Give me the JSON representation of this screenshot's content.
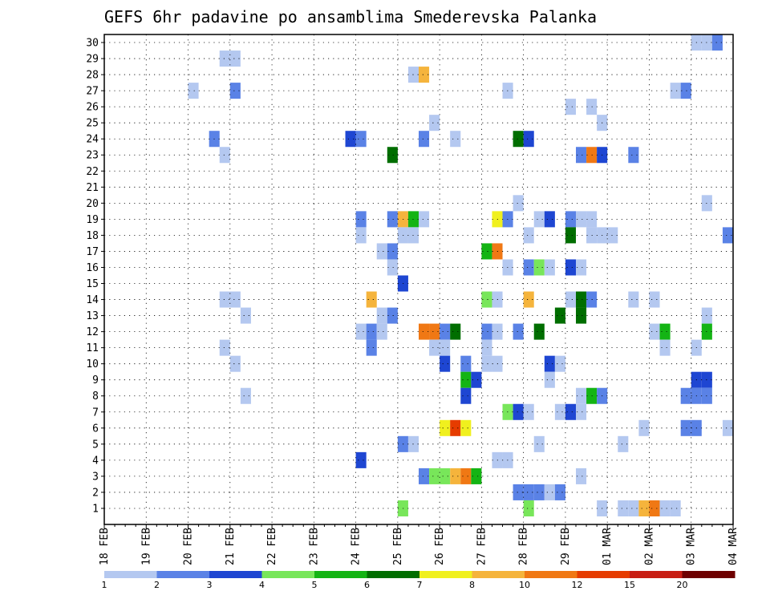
{
  "chart_data": {
    "type": "heatmap",
    "title": "GEFS 6hr padavine po ansamblima Smederevska Palanka",
    "xlabel": "",
    "ylabel": "",
    "x_tick_labels": [
      "18 FEB",
      "19 FEB",
      "20 FEB",
      "21 FEB",
      "22 FEB",
      "23 FEB",
      "24 FEB",
      "25 FEB",
      "26 FEB",
      "27 FEB",
      "28 FEB",
      "29 FEB",
      "01 MAR",
      "02 MAR",
      "03 MAR",
      "04 MAR"
    ],
    "y_tick_labels": [
      "1",
      "2",
      "3",
      "4",
      "5",
      "6",
      "7",
      "8",
      "9",
      "10",
      "11",
      "12",
      "13",
      "14",
      "15",
      "16",
      "17",
      "18",
      "19",
      "20",
      "21",
      "22",
      "23",
      "24",
      "25",
      "26",
      "27",
      "28",
      "29",
      "30"
    ],
    "xlim_steps": [
      0,
      60
    ],
    "ylim": [
      0,
      30
    ],
    "grid": true,
    "colorbar": {
      "labels": [
        "1",
        "2",
        "3",
        "4",
        "5",
        "6",
        "7",
        "8",
        "10",
        "12",
        "15",
        "20"
      ],
      "colors": [
        "#b4c8f0",
        "#5a82e6",
        "#1e46d2",
        "#78e65a",
        "#14b414",
        "#006e00",
        "#f0f01e",
        "#f5b43c",
        "#f07814",
        "#e63c00",
        "#c81e14",
        "#6e0000"
      ]
    },
    "cells": [
      {
        "m": 30,
        "t": 56,
        "c": 0
      },
      {
        "m": 30,
        "t": 57,
        "c": 0
      },
      {
        "m": 30,
        "t": 58,
        "c": 1
      },
      {
        "m": 29,
        "t": 11,
        "c": 0
      },
      {
        "m": 29,
        "t": 12,
        "c": 0
      },
      {
        "m": 28,
        "t": 29,
        "c": 0
      },
      {
        "m": 28,
        "t": 30,
        "c": 7
      },
      {
        "m": 27,
        "t": 8,
        "c": 0
      },
      {
        "m": 27,
        "t": 12,
        "c": 1
      },
      {
        "m": 27,
        "t": 38,
        "c": 0
      },
      {
        "m": 27,
        "t": 54,
        "c": 0
      },
      {
        "m": 27,
        "t": 55,
        "c": 1
      },
      {
        "m": 26,
        "t": 44,
        "c": 0
      },
      {
        "m": 26,
        "t": 46,
        "c": 0
      },
      {
        "m": 25,
        "t": 31,
        "c": 0
      },
      {
        "m": 25,
        "t": 47,
        "c": 0
      },
      {
        "m": 24,
        "t": 10,
        "c": 1
      },
      {
        "m": 24,
        "t": 23,
        "c": 2
      },
      {
        "m": 24,
        "t": 24,
        "c": 1
      },
      {
        "m": 24,
        "t": 30,
        "c": 1
      },
      {
        "m": 24,
        "t": 33,
        "c": 0
      },
      {
        "m": 24,
        "t": 39,
        "c": 5
      },
      {
        "m": 24,
        "t": 40,
        "c": 2
      },
      {
        "m": 23,
        "t": 11,
        "c": 0
      },
      {
        "m": 23,
        "t": 27,
        "c": 5
      },
      {
        "m": 23,
        "t": 45,
        "c": 1
      },
      {
        "m": 23,
        "t": 46,
        "c": 8
      },
      {
        "m": 23,
        "t": 47,
        "c": 2
      },
      {
        "m": 23,
        "t": 50,
        "c": 1
      },
      {
        "m": 20,
        "t": 39,
        "c": 0
      },
      {
        "m": 20,
        "t": 57,
        "c": 0
      },
      {
        "m": 19,
        "t": 24,
        "c": 1
      },
      {
        "m": 19,
        "t": 27,
        "c": 1
      },
      {
        "m": 19,
        "t": 28,
        "c": 7
      },
      {
        "m": 19,
        "t": 29,
        "c": 4
      },
      {
        "m": 19,
        "t": 30,
        "c": 0
      },
      {
        "m": 19,
        "t": 37,
        "c": 6
      },
      {
        "m": 19,
        "t": 38,
        "c": 1
      },
      {
        "m": 19,
        "t": 41,
        "c": 0
      },
      {
        "m": 19,
        "t": 42,
        "c": 2
      },
      {
        "m": 19,
        "t": 44,
        "c": 1
      },
      {
        "m": 19,
        "t": 45,
        "c": 0
      },
      {
        "m": 19,
        "t": 46,
        "c": 0
      },
      {
        "m": 18,
        "t": 24,
        "c": 0
      },
      {
        "m": 18,
        "t": 28,
        "c": 0
      },
      {
        "m": 18,
        "t": 29,
        "c": 0
      },
      {
        "m": 18,
        "t": 40,
        "c": 0
      },
      {
        "m": 18,
        "t": 44,
        "c": 5
      },
      {
        "m": 18,
        "t": 46,
        "c": 0
      },
      {
        "m": 18,
        "t": 47,
        "c": 0
      },
      {
        "m": 18,
        "t": 48,
        "c": 0
      },
      {
        "m": 18,
        "t": 59,
        "c": 1
      },
      {
        "m": 17,
        "t": 26,
        "c": 0
      },
      {
        "m": 17,
        "t": 27,
        "c": 1
      },
      {
        "m": 17,
        "t": 36,
        "c": 4
      },
      {
        "m": 17,
        "t": 37,
        "c": 8
      },
      {
        "m": 16,
        "t": 27,
        "c": 0
      },
      {
        "m": 16,
        "t": 38,
        "c": 0
      },
      {
        "m": 16,
        "t": 40,
        "c": 1
      },
      {
        "m": 16,
        "t": 41,
        "c": 3
      },
      {
        "m": 16,
        "t": 42,
        "c": 0
      },
      {
        "m": 16,
        "t": 44,
        "c": 2
      },
      {
        "m": 16,
        "t": 45,
        "c": 0
      },
      {
        "m": 15,
        "t": 28,
        "c": 2
      },
      {
        "m": 14,
        "t": 11,
        "c": 0
      },
      {
        "m": 14,
        "t": 12,
        "c": 0
      },
      {
        "m": 14,
        "t": 25,
        "c": 7
      },
      {
        "m": 14,
        "t": 36,
        "c": 3
      },
      {
        "m": 14,
        "t": 37,
        "c": 0
      },
      {
        "m": 14,
        "t": 40,
        "c": 7
      },
      {
        "m": 14,
        "t": 44,
        "c": 0
      },
      {
        "m": 14,
        "t": 45,
        "c": 5
      },
      {
        "m": 14,
        "t": 46,
        "c": 1
      },
      {
        "m": 14,
        "t": 50,
        "c": 0
      },
      {
        "m": 14,
        "t": 52,
        "c": 0
      },
      {
        "m": 13,
        "t": 13,
        "c": 0
      },
      {
        "m": 13,
        "t": 26,
        "c": 0
      },
      {
        "m": 13,
        "t": 27,
        "c": 1
      },
      {
        "m": 13,
        "t": 43,
        "c": 5
      },
      {
        "m": 13,
        "t": 45,
        "c": 5
      },
      {
        "m": 13,
        "t": 57,
        "c": 0
      },
      {
        "m": 12,
        "t": 24,
        "c": 0
      },
      {
        "m": 12,
        "t": 25,
        "c": 1
      },
      {
        "m": 12,
        "t": 26,
        "c": 0
      },
      {
        "m": 12,
        "t": 30,
        "c": 8
      },
      {
        "m": 12,
        "t": 31,
        "c": 8
      },
      {
        "m": 12,
        "t": 32,
        "c": 1
      },
      {
        "m": 12,
        "t": 33,
        "c": 5
      },
      {
        "m": 12,
        "t": 36,
        "c": 1
      },
      {
        "m": 12,
        "t": 37,
        "c": 0
      },
      {
        "m": 12,
        "t": 39,
        "c": 1
      },
      {
        "m": 12,
        "t": 41,
        "c": 5
      },
      {
        "m": 12,
        "t": 52,
        "c": 0
      },
      {
        "m": 12,
        "t": 53,
        "c": 4
      },
      {
        "m": 12,
        "t": 57,
        "c": 4
      },
      {
        "m": 11,
        "t": 11,
        "c": 0
      },
      {
        "m": 11,
        "t": 25,
        "c": 1
      },
      {
        "m": 11,
        "t": 31,
        "c": 0
      },
      {
        "m": 11,
        "t": 32,
        "c": 0
      },
      {
        "m": 11,
        "t": 36,
        "c": 0
      },
      {
        "m": 11,
        "t": 53,
        "c": 0
      },
      {
        "m": 11,
        "t": 56,
        "c": 0
      },
      {
        "m": 10,
        "t": 12,
        "c": 0
      },
      {
        "m": 10,
        "t": 32,
        "c": 2
      },
      {
        "m": 10,
        "t": 34,
        "c": 1
      },
      {
        "m": 10,
        "t": 36,
        "c": 0
      },
      {
        "m": 10,
        "t": 37,
        "c": 0
      },
      {
        "m": 10,
        "t": 42,
        "c": 2
      },
      {
        "m": 10,
        "t": 43,
        "c": 0
      },
      {
        "m": 9,
        "t": 34,
        "c": 4
      },
      {
        "m": 9,
        "t": 35,
        "c": 2
      },
      {
        "m": 9,
        "t": 42,
        "c": 0
      },
      {
        "m": 9,
        "t": 56,
        "c": 2
      },
      {
        "m": 9,
        "t": 57,
        "c": 2
      },
      {
        "m": 8,
        "t": 13,
        "c": 0
      },
      {
        "m": 8,
        "t": 34,
        "c": 2
      },
      {
        "m": 8,
        "t": 45,
        "c": 0
      },
      {
        "m": 8,
        "t": 46,
        "c": 4
      },
      {
        "m": 8,
        "t": 47,
        "c": 1
      },
      {
        "m": 8,
        "t": 55,
        "c": 1
      },
      {
        "m": 8,
        "t": 56,
        "c": 1
      },
      {
        "m": 8,
        "t": 57,
        "c": 1
      },
      {
        "m": 7,
        "t": 38,
        "c": 3
      },
      {
        "m": 7,
        "t": 39,
        "c": 2
      },
      {
        "m": 7,
        "t": 40,
        "c": 0
      },
      {
        "m": 7,
        "t": 43,
        "c": 0
      },
      {
        "m": 7,
        "t": 44,
        "c": 2
      },
      {
        "m": 7,
        "t": 45,
        "c": 0
      },
      {
        "m": 6,
        "t": 32,
        "c": 6
      },
      {
        "m": 6,
        "t": 33,
        "c": 9
      },
      {
        "m": 6,
        "t": 34,
        "c": 6
      },
      {
        "m": 6,
        "t": 51,
        "c": 0
      },
      {
        "m": 6,
        "t": 55,
        "c": 1
      },
      {
        "m": 6,
        "t": 56,
        "c": 1
      },
      {
        "m": 6,
        "t": 59,
        "c": 0
      },
      {
        "m": 5,
        "t": 28,
        "c": 1
      },
      {
        "m": 5,
        "t": 29,
        "c": 0
      },
      {
        "m": 5,
        "t": 41,
        "c": 0
      },
      {
        "m": 5,
        "t": 49,
        "c": 0
      },
      {
        "m": 4,
        "t": 24,
        "c": 2
      },
      {
        "m": 4,
        "t": 37,
        "c": 0
      },
      {
        "m": 4,
        "t": 38,
        "c": 0
      },
      {
        "m": 3,
        "t": 30,
        "c": 1
      },
      {
        "m": 3,
        "t": 31,
        "c": 3
      },
      {
        "m": 3,
        "t": 32,
        "c": 3
      },
      {
        "m": 3,
        "t": 33,
        "c": 7
      },
      {
        "m": 3,
        "t": 34,
        "c": 8
      },
      {
        "m": 3,
        "t": 35,
        "c": 4
      },
      {
        "m": 3,
        "t": 45,
        "c": 0
      },
      {
        "m": 2,
        "t": 39,
        "c": 1
      },
      {
        "m": 2,
        "t": 40,
        "c": 1
      },
      {
        "m": 2,
        "t": 41,
        "c": 1
      },
      {
        "m": 2,
        "t": 42,
        "c": 0
      },
      {
        "m": 2,
        "t": 43,
        "c": 1
      },
      {
        "m": 1,
        "t": 28,
        "c": 3
      },
      {
        "m": 1,
        "t": 40,
        "c": 3
      },
      {
        "m": 1,
        "t": 47,
        "c": 0
      },
      {
        "m": 1,
        "t": 49,
        "c": 0
      },
      {
        "m": 1,
        "t": 50,
        "c": 0
      },
      {
        "m": 1,
        "t": 51,
        "c": 7
      },
      {
        "m": 1,
        "t": 52,
        "c": 8
      },
      {
        "m": 1,
        "t": 53,
        "c": 0
      },
      {
        "m": 1,
        "t": 54,
        "c": 0
      }
    ]
  }
}
